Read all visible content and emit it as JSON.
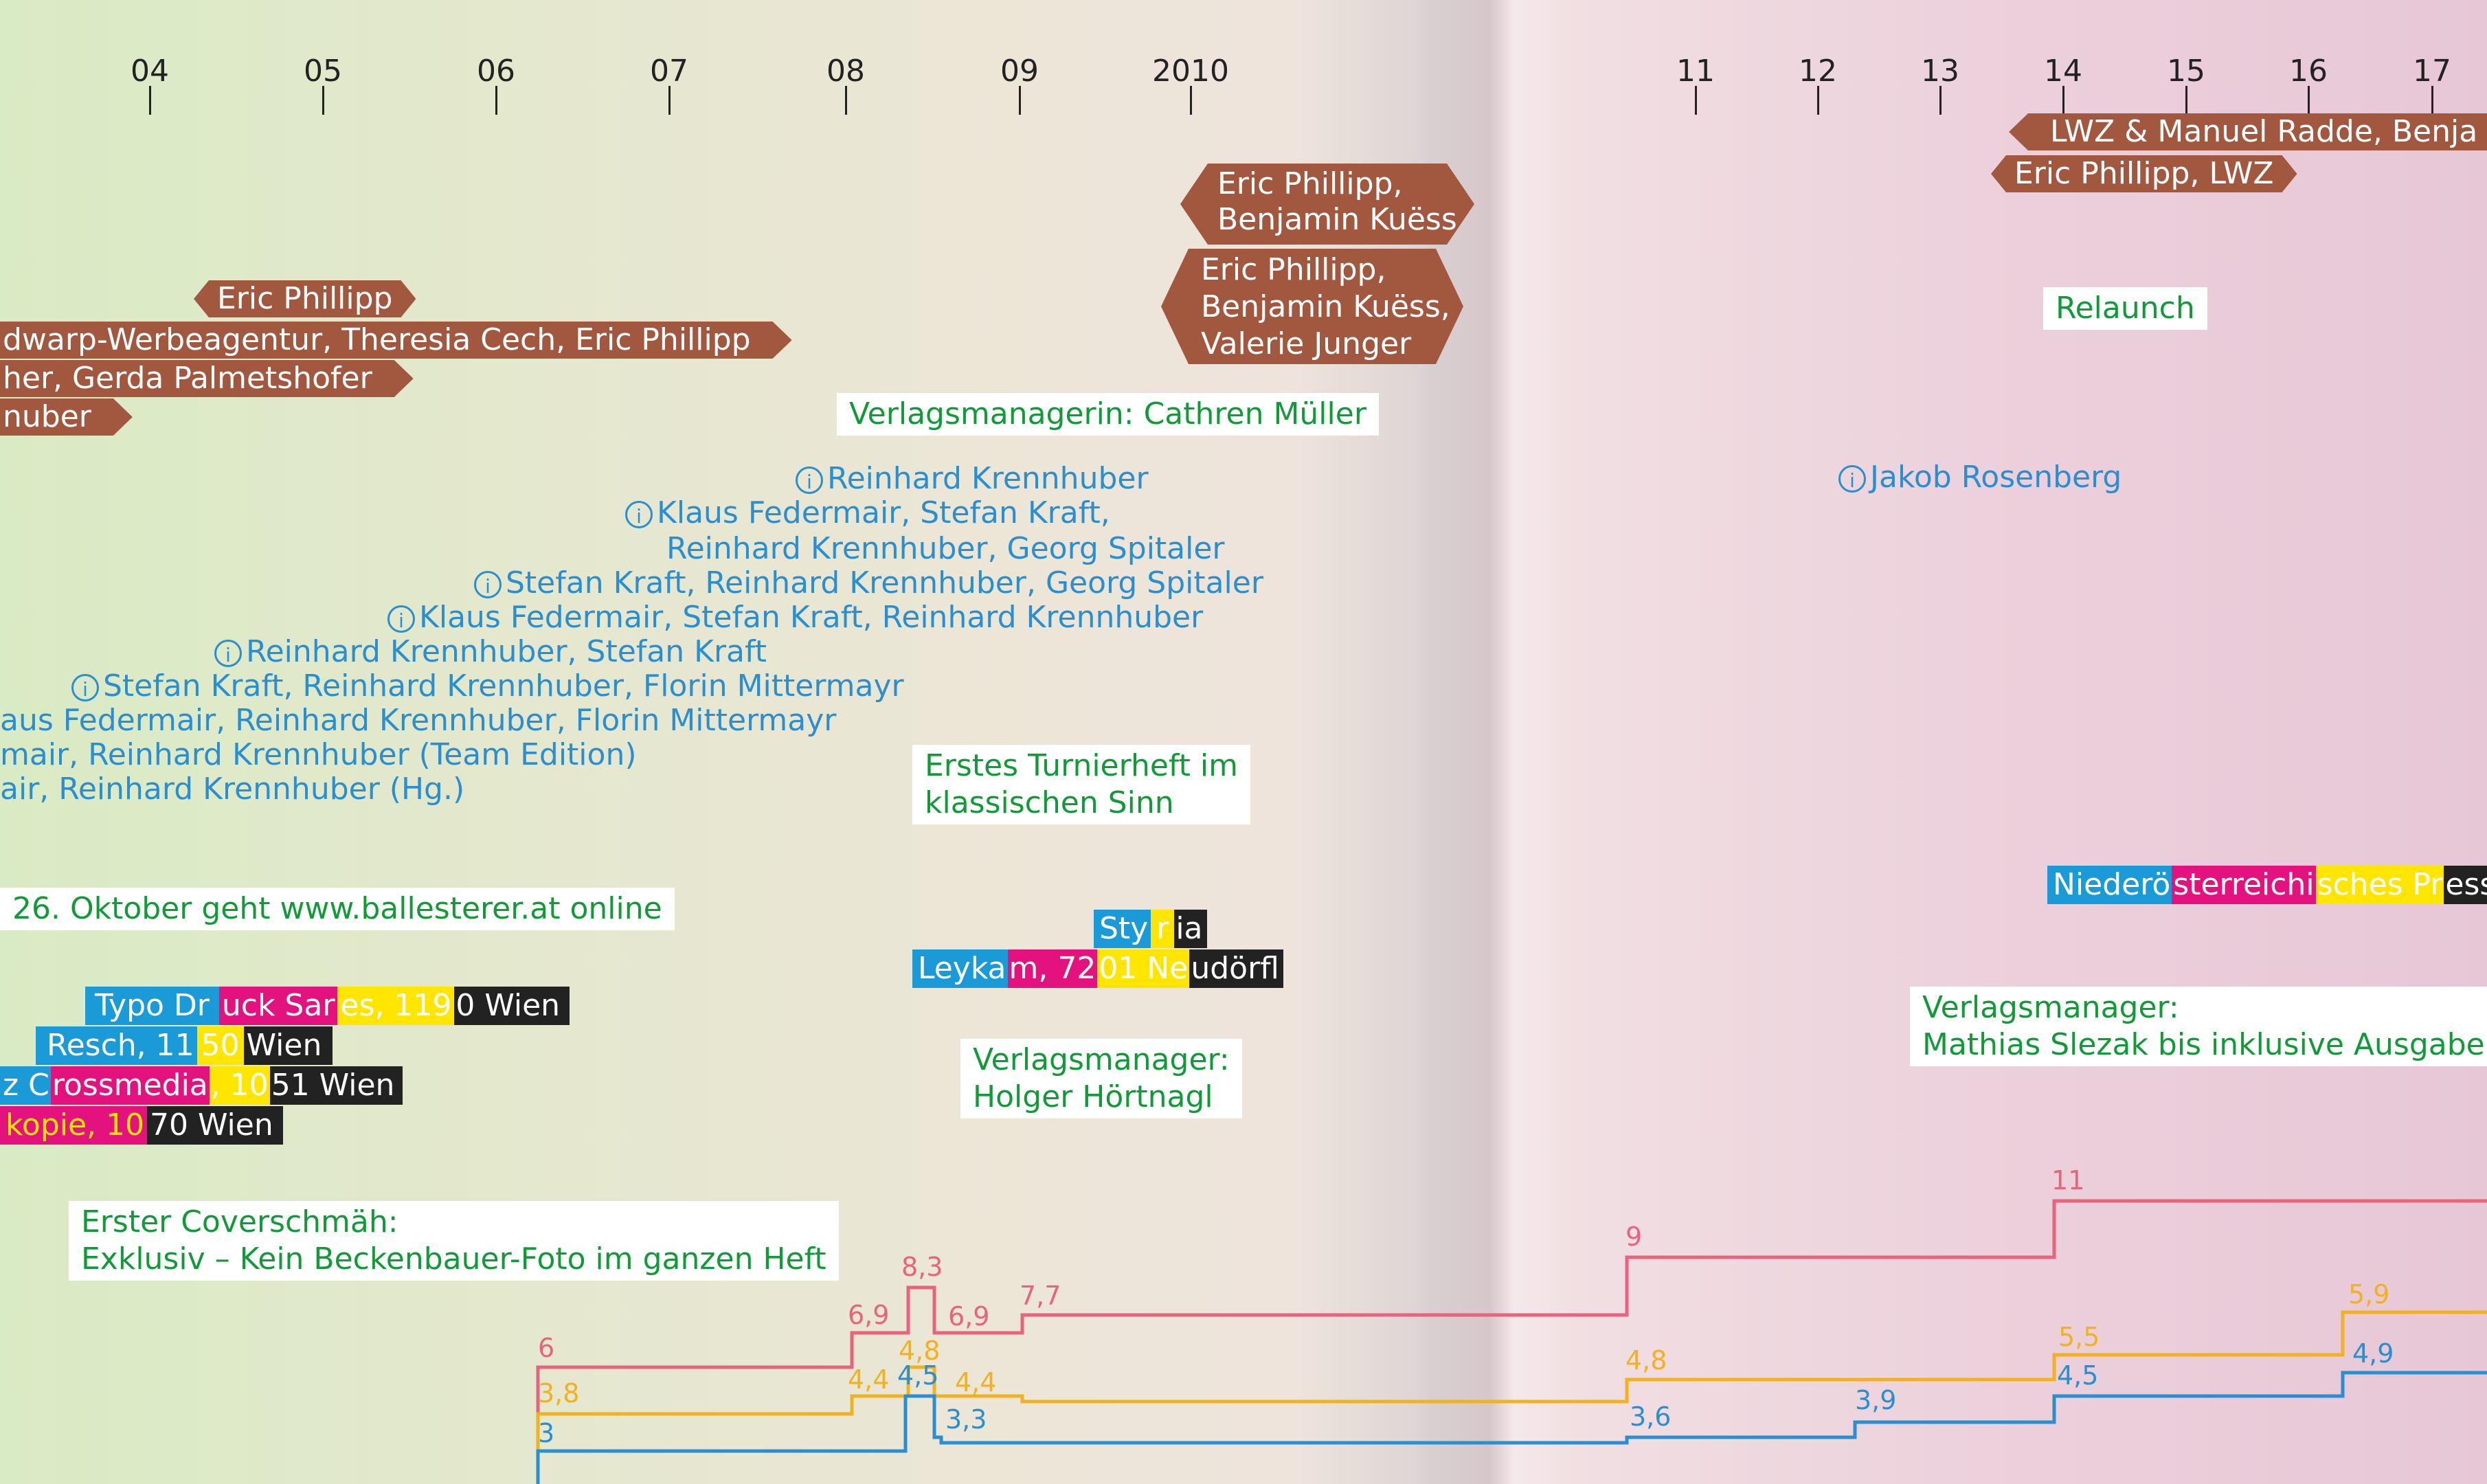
{
  "timeline": {
    "years_left": [
      "04",
      "05",
      "06",
      "07",
      "08",
      "09",
      "2010"
    ],
    "years_right": [
      "11",
      "12",
      "13",
      "14",
      "15",
      "16",
      "17"
    ]
  },
  "art_direction": {
    "eric_phillipp": "Eric Phillipp",
    "edwarp": "dwarp-Werbeagentur, Theresia Cech, Eric Phillipp",
    "gerda": "her, Gerda Palmetshofer",
    "huber": "nuber",
    "eric_benjamin": "Eric Phillipp,\nBenjamin Kuëss",
    "eric_benjamin_valerie": "Eric Phillipp,\nBenjamin Kuëss,\nValerie Junger",
    "lwz_manuel": "LWZ & Manuel Radde, Benja",
    "eric_lwz": "Eric Phillipp, LWZ"
  },
  "notes": {
    "verlagsmanagerin": "Verlagsmanagerin: Cathren Müller",
    "relaunch": "Relaunch",
    "turnierheft": "Erstes Turnierheft im\nklassischen Sinn",
    "online": "26. Oktober geht www.ballesterer.at online",
    "verlagsmanager_hoertnagl": "Verlagsmanager:\nHolger Hörtnagl",
    "verlagsmanager_slezak": "Verlagsmanager:\nMathias Slezak bis inklusive Ausgabe",
    "coverschmaeh": "Erster Coverschmäh:\nExklusiv – Kein Beckenbauer-Foto im ganzen Heft"
  },
  "editors": {
    "icon": "info-icon",
    "krennhuber_2009": "Reinhard Krennhuber",
    "federmair_kraft_1": "Klaus Federmair, Stefan Kraft,",
    "federmair_kraft_2": "Reinhard Krennhuber, Georg Spitaler",
    "kraft_krennhuber_spitaler": "Stefan Kraft, Reinhard Krennhuber, Georg Spitaler",
    "federmair_kraft_krennhuber": "Klaus Federmair, Stefan Kraft, Reinhard Krennhuber",
    "krennhuber_kraft": "Reinhard Krennhuber, Stefan Kraft",
    "kraft_krennhuber_mittermayr": "Stefan Kraft, Reinhard Krennhuber, Florin Mittermayr",
    "federmair_krennhuber_mittermayr": "aus Federmair, Reinhard Krennhuber, Florin Mittermayr",
    "team_edition": "mair, Reinhard Krennhuber (Team Edition)",
    "hg": "air, Reinhard Krennhuber (Hg.)",
    "rosenberg": "Jakob Rosenberg"
  },
  "printers": {
    "typo": [
      "Typo Dr",
      "uck Sar",
      "es, 119",
      "0 Wien"
    ],
    "resch": [
      "Resch, 11",
      "50 ",
      "Wien"
    ],
    "crossmedia": [
      "z C",
      "rossmedia",
      ", 10",
      "51 Wien"
    ],
    "kopie": [
      "kopie, 10",
      "70 Wien"
    ],
    "styria": [
      "Sty",
      "r",
      "ia"
    ],
    "leykam": [
      "Leyka",
      "m, 72",
      "01 Ne",
      "udörfl"
    ],
    "noe": [
      "Niederö",
      "sterreichi",
      "sches Pr",
      "esse"
    ]
  },
  "colors": {
    "cyan": "#1b9ad8",
    "magenta": "#e3127e",
    "yellow": "#ffe600",
    "black": "#222222",
    "pink": "#e8637e",
    "orange": "#f2b21f",
    "blueline": "#2a8fd0"
  },
  "price_lines": {
    "pink_labels": [
      "6",
      "6,9",
      "8,3",
      "6,9",
      "7,7",
      "9",
      "11"
    ],
    "yellow_labels": [
      "3,8",
      "4,4",
      "4,8",
      "4,4",
      "4,8",
      "5,5",
      "5,9"
    ],
    "blue_labels": [
      "3",
      "4,5",
      "3,3",
      "3,6",
      "3,9",
      "4,5",
      "4,9"
    ]
  }
}
